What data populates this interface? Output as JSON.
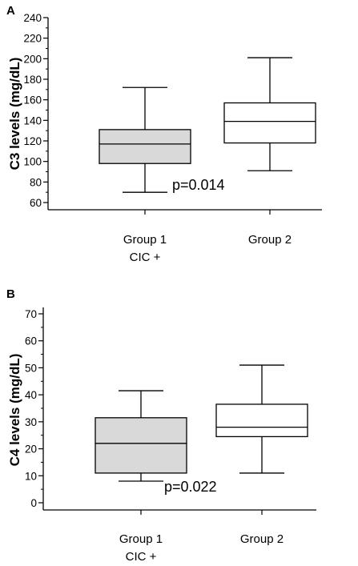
{
  "chart_data": [
    {
      "panel": "A",
      "type": "box",
      "ylabel": "C3 levels (mg/dL)",
      "ylim": [
        60,
        240
      ],
      "yticks": [
        "60",
        "80",
        "100",
        "120",
        "140",
        "160",
        "180",
        "200",
        "220",
        "240"
      ],
      "groups": [
        {
          "label_lines": [
            "Group 1",
            "CIC +"
          ],
          "min": 70,
          "q1": 98,
          "median": 117,
          "q3": 131,
          "max": 172,
          "fill": "#d9d9d9"
        },
        {
          "label_lines": [
            "Group 2"
          ],
          "min": 91,
          "q1": 118,
          "median": 139,
          "q3": 157,
          "max": 201,
          "fill": "#ffffff"
        }
      ],
      "annotation": "p=0.014",
      "grid": false
    },
    {
      "panel": "B",
      "type": "box",
      "ylabel": "C4 levels (mg/dL)",
      "ylim": [
        0,
        70
      ],
      "yticks": [
        "0",
        "10",
        "20",
        "30",
        "40",
        "50",
        "60",
        "70"
      ],
      "groups": [
        {
          "label_lines": [
            "Group 1",
            "CIC +"
          ],
          "min": 8,
          "q1": 11,
          "median": 22,
          "q3": 31.5,
          "max": 41.5,
          "fill": "#d9d9d9"
        },
        {
          "label_lines": [
            "Group 2"
          ],
          "min": 11,
          "q1": 24.5,
          "median": 28,
          "q3": 36.5,
          "max": 51,
          "fill": "#ffffff"
        }
      ],
      "annotation": "p=0.022",
      "grid": false
    }
  ]
}
